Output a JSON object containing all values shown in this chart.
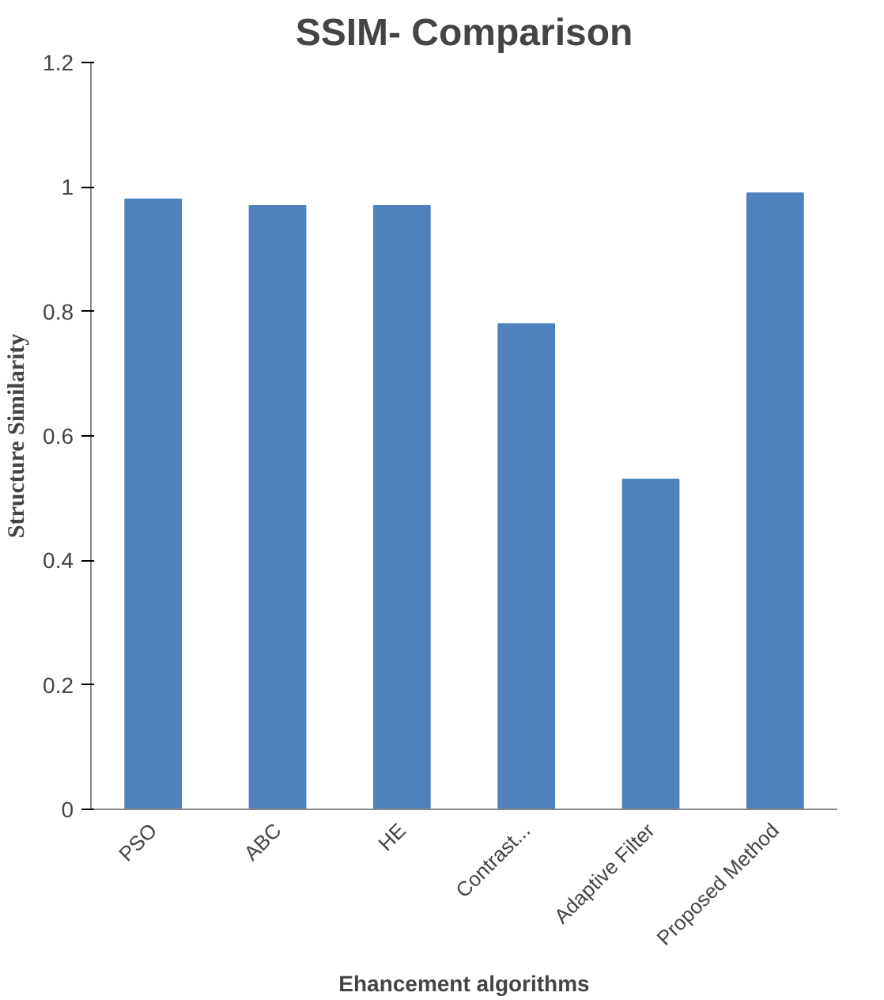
{
  "chart_data": {
    "type": "bar",
    "title": "SSIM- Comparison",
    "xlabel": "Ehancement algorithms",
    "ylabel": "Structure Similarity",
    "categories": [
      "PSO",
      "ABC",
      "HE",
      "Contrast...",
      "Adaptive Filter",
      "Proposed Method"
    ],
    "values": [
      0.98,
      0.97,
      0.97,
      0.78,
      0.53,
      0.99
    ],
    "color": "#4f81bd",
    "ylim": [
      0,
      1.2
    ],
    "yticks": [
      0,
      0.2,
      0.4,
      0.6,
      0.8,
      1,
      1.2
    ],
    "grid": false
  }
}
